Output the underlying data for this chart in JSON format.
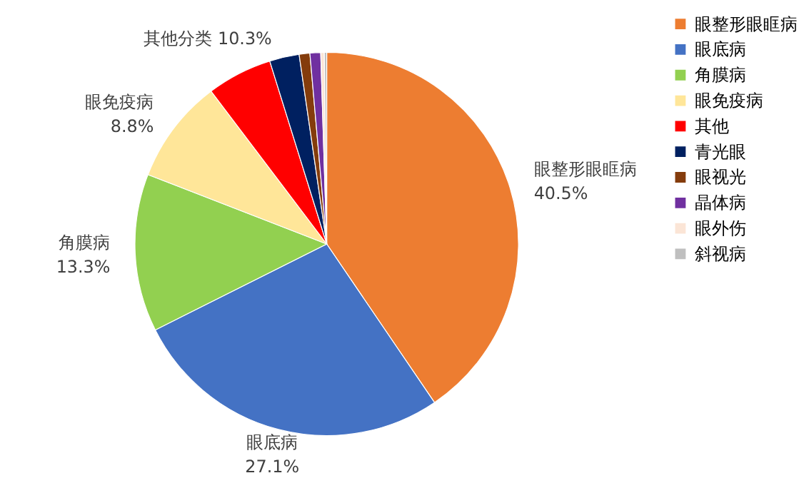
{
  "chart_data": {
    "type": "pie",
    "categories": [
      "眼整形眼眶病",
      "眼底病",
      "角膜病",
      "眼免疫病",
      "其他",
      "青光眼",
      "眼视光",
      "晶体病",
      "眼外伤",
      "斜视病"
    ],
    "values": [
      40.5,
      27.1,
      13.3,
      8.8,
      5.5,
      2.5,
      0.9,
      0.9,
      0.3,
      0.2
    ],
    "colors": [
      "#ed7d31",
      "#4472c4",
      "#92d050",
      "#ffe699",
      "#ff0000",
      "#002060",
      "#843c0c",
      "#7030a0",
      "#fbe5d6",
      "#bfbfbf"
    ],
    "value_labels": [
      "40.5%",
      "27.1%",
      "13.3%",
      "8.8%",
      null,
      null,
      null,
      null,
      null,
      null
    ],
    "annotations": [
      "其他分类 10.3%"
    ],
    "legend": "right"
  }
}
